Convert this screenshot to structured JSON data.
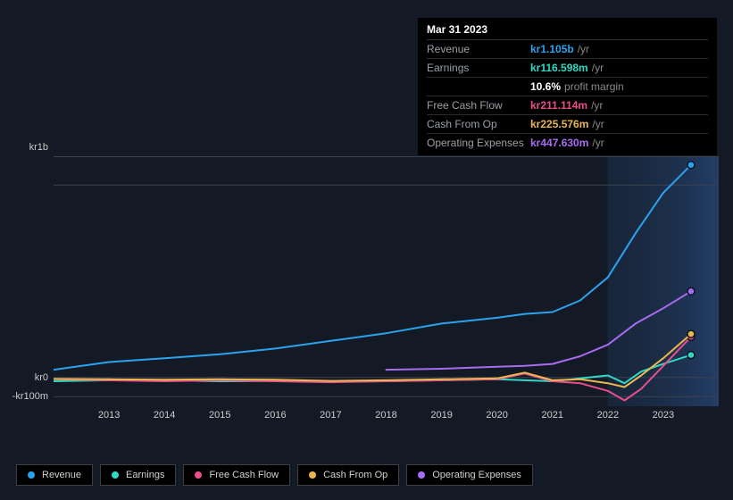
{
  "tooltip": {
    "date": "Mar 31 2023",
    "rows": [
      {
        "label": "Revenue",
        "value": "kr1.105b",
        "suffix": "/yr",
        "color": "#2aa3ef"
      },
      {
        "label": "Earnings",
        "value": "kr116.598m",
        "suffix": "/yr",
        "color": "#2fd9c4"
      },
      {
        "label": "",
        "value": "10.6%",
        "suffix": "profit margin",
        "color": "#ffffff"
      },
      {
        "label": "Free Cash Flow",
        "value": "kr211.114m",
        "suffix": "/yr",
        "color": "#e94f8a"
      },
      {
        "label": "Cash From Op",
        "value": "kr225.576m",
        "suffix": "/yr",
        "color": "#eab751"
      },
      {
        "label": "Operating Expenses",
        "value": "kr447.630m",
        "suffix": "/yr",
        "color": "#a96bf0"
      }
    ]
  },
  "chart": {
    "type": "line",
    "background_color": "#131a25",
    "plot_bg": "#131a25",
    "grid_color": "#3a4250",
    "forecast_start_year": 2022,
    "x": {
      "min": 2012,
      "max": 2024,
      "ticks": [
        2013,
        2014,
        2015,
        2016,
        2017,
        2018,
        2019,
        2020,
        2021,
        2022,
        2023
      ]
    },
    "y": {
      "min": -150000000,
      "max": 1150000000,
      "ticks": [
        {
          "v": 1000000000,
          "label": "kr1b"
        },
        {
          "v": 0,
          "label": "kr0"
        },
        {
          "v": -100000000,
          "label": "-kr100m"
        }
      ]
    },
    "series": [
      {
        "name": "Revenue",
        "color": "#2aa3ef",
        "points": [
          [
            2012,
            40000000
          ],
          [
            2013,
            80000000
          ],
          [
            2014,
            100000000
          ],
          [
            2015,
            120000000
          ],
          [
            2016,
            150000000
          ],
          [
            2017,
            190000000
          ],
          [
            2018,
            230000000
          ],
          [
            2019,
            280000000
          ],
          [
            2020,
            310000000
          ],
          [
            2020.5,
            330000000
          ],
          [
            2021,
            340000000
          ],
          [
            2021.5,
            400000000
          ],
          [
            2022,
            520000000
          ],
          [
            2022.5,
            750000000
          ],
          [
            2023,
            960000000
          ],
          [
            2023.5,
            1105000000
          ]
        ]
      },
      {
        "name": "Earnings",
        "color": "#2fd9c4",
        "points": [
          [
            2012,
            -20000000
          ],
          [
            2013,
            -15000000
          ],
          [
            2014,
            -15000000
          ],
          [
            2015,
            -20000000
          ],
          [
            2016,
            -18000000
          ],
          [
            2017,
            -22000000
          ],
          [
            2018,
            -20000000
          ],
          [
            2019,
            -15000000
          ],
          [
            2020,
            -10000000
          ],
          [
            2021,
            -20000000
          ],
          [
            2021.5,
            -5000000
          ],
          [
            2022,
            10000000
          ],
          [
            2022.3,
            -30000000
          ],
          [
            2022.6,
            30000000
          ],
          [
            2023,
            70000000
          ],
          [
            2023.5,
            116598000
          ]
        ]
      },
      {
        "name": "Free Cash Flow",
        "color": "#e94f8a",
        "points": [
          [
            2012,
            -10000000
          ],
          [
            2013,
            -15000000
          ],
          [
            2014,
            -20000000
          ],
          [
            2015,
            -15000000
          ],
          [
            2016,
            -20000000
          ],
          [
            2017,
            -25000000
          ],
          [
            2018,
            -20000000
          ],
          [
            2019,
            -15000000
          ],
          [
            2020,
            -10000000
          ],
          [
            2020.5,
            20000000
          ],
          [
            2021,
            -20000000
          ],
          [
            2021.5,
            -30000000
          ],
          [
            2022,
            -70000000
          ],
          [
            2022.3,
            -120000000
          ],
          [
            2022.6,
            -60000000
          ],
          [
            2023,
            60000000
          ],
          [
            2023.5,
            211114000
          ]
        ]
      },
      {
        "name": "Cash From Op",
        "color": "#eab751",
        "points": [
          [
            2012,
            -8000000
          ],
          [
            2013,
            -10000000
          ],
          [
            2014,
            -12000000
          ],
          [
            2015,
            -10000000
          ],
          [
            2016,
            -12000000
          ],
          [
            2017,
            -18000000
          ],
          [
            2018,
            -15000000
          ],
          [
            2019,
            -10000000
          ],
          [
            2020,
            -5000000
          ],
          [
            2020.5,
            25000000
          ],
          [
            2021,
            -15000000
          ],
          [
            2021.5,
            -10000000
          ],
          [
            2022,
            -30000000
          ],
          [
            2022.3,
            -50000000
          ],
          [
            2022.6,
            10000000
          ],
          [
            2023,
            100000000
          ],
          [
            2023.5,
            225576000
          ]
        ]
      },
      {
        "name": "Operating Expenses",
        "color": "#a96bf0",
        "points": [
          [
            2018,
            40000000
          ],
          [
            2019,
            45000000
          ],
          [
            2020,
            55000000
          ],
          [
            2020.5,
            60000000
          ],
          [
            2021,
            70000000
          ],
          [
            2021.5,
            110000000
          ],
          [
            2022,
            170000000
          ],
          [
            2022.5,
            280000000
          ],
          [
            2023,
            360000000
          ],
          [
            2023.5,
            447630000
          ]
        ]
      }
    ]
  },
  "legend": {
    "items": [
      {
        "label": "Revenue",
        "color": "#2aa3ef"
      },
      {
        "label": "Earnings",
        "color": "#2fd9c4"
      },
      {
        "label": "Free Cash Flow",
        "color": "#e94f8a"
      },
      {
        "label": "Cash From Op",
        "color": "#eab751"
      },
      {
        "label": "Operating Expenses",
        "color": "#a96bf0"
      }
    ]
  }
}
